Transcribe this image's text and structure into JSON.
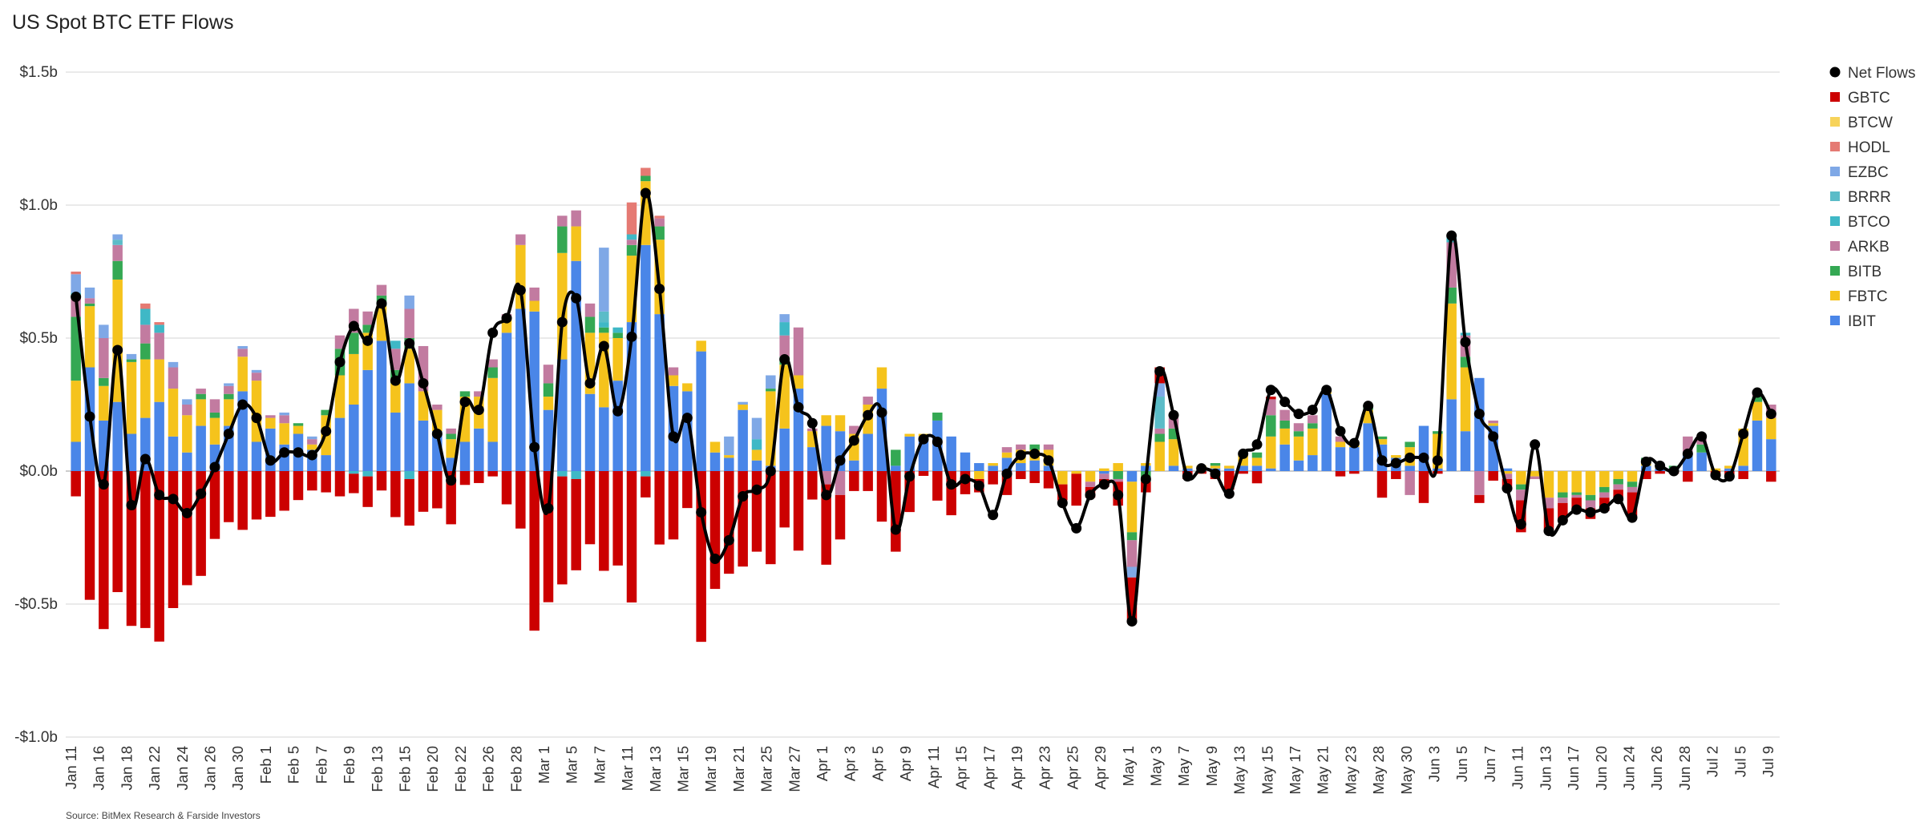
{
  "chart_data": {
    "type": "bar",
    "title": "US Spot BTC ETF Flows",
    "source": "Source: BitMex Research & Farside Investors",
    "ylim": [
      -1.0,
      1.5
    ],
    "y_unit": "billion USD",
    "yticks": [
      {
        "value": 1.5,
        "label": "$1.5b"
      },
      {
        "value": 1.0,
        "label": "$1.0b"
      },
      {
        "value": 0.5,
        "label": "$0.5b"
      },
      {
        "value": 0.0,
        "label": "$0.0b"
      },
      {
        "value": -0.5,
        "label": "-$0.5b"
      },
      {
        "value": -1.0,
        "label": "-$1.0b"
      }
    ],
    "xtick_labels": [
      "Jan 11",
      "Jan 16",
      "Jan 18",
      "Jan 22",
      "Jan 24",
      "Jan 26",
      "Jan 30",
      "Feb 1",
      "Feb 5",
      "Feb 7",
      "Feb 9",
      "Feb 13",
      "Feb 15",
      "Feb 20",
      "Feb 22",
      "Feb 26",
      "Feb 28",
      "Mar 1",
      "Mar 5",
      "Mar 7",
      "Mar 11",
      "Mar 13",
      "Mar 15",
      "Mar 19",
      "Mar 21",
      "Mar 25",
      "Mar 27",
      "Apr 1",
      "Apr 3",
      "Apr 5",
      "Apr 9",
      "Apr 11",
      "Apr 15",
      "Apr 17",
      "Apr 19",
      "Apr 23",
      "Apr 25",
      "Apr 29",
      "May 1",
      "May 3",
      "May 7",
      "May 9",
      "May 13",
      "May 15",
      "May 17",
      "May 21",
      "May 23",
      "May 28",
      "May 30",
      "Jun 3",
      "Jun 5",
      "Jun 7",
      "Jun 11",
      "Jun 13",
      "Jun 17",
      "Jun 20",
      "Jun 24",
      "Jun 26",
      "Jun 28",
      "Jul 2",
      "Jul 5",
      "Jul 9"
    ],
    "legend_position": "right",
    "grid": true,
    "series_order": [
      "IBIT",
      "FBTC",
      "BITB",
      "ARKB",
      "BTCO",
      "BRRR",
      "EZBC",
      "HODL",
      "BTCW",
      "GBTC"
    ],
    "net_flows_name": "Net Flows",
    "series_colors": {
      "IBIT": "#4a86e8",
      "FBTC": "#f5c31c",
      "BITB": "#34a853",
      "ARKB": "#c27ba0",
      "BTCO": "#3fb8c6",
      "BRRR": "#5bbcc8",
      "EZBC": "#7fa8e6",
      "HODL": "#e57a73",
      "BTCW": "#f7d35a",
      "GBTC": "#cc0000",
      "Net Flows": "#000000"
    },
    "legend": [
      "Net Flows",
      "GBTC",
      "BTCW",
      "HODL",
      "EZBC",
      "BRRR",
      "BTCO",
      "ARKB",
      "BITB",
      "FBTC",
      "IBIT"
    ],
    "days": [
      {
        "IBIT": 0.11,
        "FBTC": 0.23,
        "BITB": 0.24,
        "ARKB": 0.07,
        "BTCO": 0.02,
        "EZBC": 0.07,
        "HODL": 0.01,
        "GBTC": -0.095,
        "net": 0.655
      },
      {
        "IBIT": 0.39,
        "FBTC": 0.23,
        "BITB": 0.01,
        "ARKB": 0.02,
        "EZBC": 0.04,
        "GBTC": -0.484,
        "net": 0.205
      },
      {
        "IBIT": 0.19,
        "FBTC": 0.13,
        "BITB": 0.03,
        "ARKB": 0.15,
        "EZBC": 0.05,
        "GBTC": -0.594,
        "net": -0.05
      },
      {
        "IBIT": 0.26,
        "FBTC": 0.46,
        "BITB": 0.07,
        "ARKB": 0.06,
        "BRRR": 0.02,
        "EZBC": 0.02,
        "GBTC": -0.455,
        "net": 0.455
      },
      {
        "IBIT": 0.14,
        "FBTC": 0.27,
        "BITB": 0.01,
        "EZBC": 0.02,
        "GBTC": -0.582,
        "net": -0.128
      },
      {
        "IBIT": 0.2,
        "FBTC": 0.22,
        "BITB": 0.06,
        "ARKB": 0.07,
        "BTCO": 0.06,
        "HODL": 0.02,
        "GBTC": -0.59,
        "net": 0.045
      },
      {
        "IBIT": 0.26,
        "FBTC": 0.16,
        "ARKB": 0.1,
        "BTCO": 0.03,
        "HODL": 0.01,
        "GBTC": -0.641,
        "net": -0.09
      },
      {
        "IBIT": 0.13,
        "FBTC": 0.18,
        "ARKB": 0.08,
        "EZBC": 0.02,
        "GBTC": -0.515,
        "net": -0.105
      },
      {
        "IBIT": 0.07,
        "FBTC": 0.14,
        "ARKB": 0.04,
        "EZBC": 0.02,
        "GBTC": -0.429,
        "net": -0.158
      },
      {
        "IBIT": 0.17,
        "FBTC": 0.1,
        "BITB": 0.02,
        "ARKB": 0.02,
        "GBTC": -0.394,
        "net": -0.085
      },
      {
        "IBIT": 0.1,
        "FBTC": 0.1,
        "BITB": 0.02,
        "ARKB": 0.05,
        "GBTC": -0.255,
        "net": 0.015
      },
      {
        "IBIT": 0.17,
        "FBTC": 0.1,
        "BITB": 0.02,
        "ARKB": 0.03,
        "EZBC": 0.01,
        "GBTC": -0.192,
        "net": 0.14
      },
      {
        "IBIT": 0.3,
        "FBTC": 0.13,
        "ARKB": 0.03,
        "EZBC": 0.01,
        "GBTC": -0.221,
        "net": 0.25
      },
      {
        "IBIT": 0.11,
        "FBTC": 0.23,
        "ARKB": 0.03,
        "EZBC": 0.01,
        "GBTC": -0.182,
        "net": 0.2
      },
      {
        "IBIT": 0.16,
        "FBTC": 0.04,
        "ARKB": 0.01,
        "GBTC": -0.172,
        "net": 0.04
      },
      {
        "IBIT": 0.1,
        "FBTC": 0.08,
        "ARKB": 0.03,
        "EZBC": 0.01,
        "GBTC": -0.149,
        "net": 0.07
      },
      {
        "IBIT": 0.14,
        "FBTC": 0.03,
        "BITB": 0.01,
        "GBTC": -0.109,
        "net": 0.07
      },
      {
        "IBIT": 0.08,
        "FBTC": 0.02,
        "ARKB": 0.02,
        "EZBC": 0.01,
        "GBTC": -0.073,
        "net": 0.06
      },
      {
        "IBIT": 0.06,
        "FBTC": 0.15,
        "BITB": 0.02,
        "GBTC": -0.08,
        "net": 0.15
      },
      {
        "IBIT": 0.2,
        "FBTC": 0.16,
        "BITB": 0.1,
        "ARKB": 0.05,
        "GBTC": -0.095,
        "net": 0.41
      },
      {
        "IBIT": 0.25,
        "FBTC": 0.19,
        "BITB": 0.08,
        "ARKB": 0.09,
        "BTCO": -0.01,
        "GBTC": -0.073,
        "net": 0.545
      },
      {
        "IBIT": 0.38,
        "FBTC": 0.14,
        "BITB": 0.03,
        "ARKB": 0.05,
        "BTCO": -0.02,
        "GBTC": -0.115,
        "net": 0.49
      },
      {
        "IBIT": 0.49,
        "FBTC": 0.13,
        "BITB": 0.04,
        "ARKB": 0.04,
        "GBTC": -0.073,
        "net": 0.63
      },
      {
        "IBIT": 0.22,
        "FBTC": 0.11,
        "BITB": 0.05,
        "ARKB": 0.08,
        "BTCO": 0.03,
        "GBTC": -0.173,
        "net": 0.34
      },
      {
        "IBIT": 0.33,
        "FBTC": 0.13,
        "BITB": 0.04,
        "ARKB": 0.11,
        "EZBC": 0.05,
        "BTCO": -0.03,
        "GBTC": -0.175,
        "net": 0.48
      },
      {
        "IBIT": 0.19,
        "FBTC": 0.11,
        "ARKB": 0.17,
        "GBTC": -0.153,
        "net": 0.33
      },
      {
        "IBIT": 0.15,
        "FBTC": 0.08,
        "ARKB": 0.02,
        "GBTC": -0.14,
        "net": 0.14
      },
      {
        "IBIT": 0.05,
        "FBTC": 0.07,
        "BITB": 0.02,
        "ARKB": 0.02,
        "GBTC": -0.2,
        "net": -0.035
      },
      {
        "IBIT": 0.11,
        "FBTC": 0.17,
        "BITB": 0.02,
        "GBTC": -0.052,
        "net": 0.26
      },
      {
        "IBIT": 0.16,
        "FBTC": 0.12,
        "ARKB": 0.02,
        "GBTC": -0.045,
        "net": 0.23
      },
      {
        "IBIT": 0.11,
        "FBTC": 0.24,
        "BITB": 0.04,
        "ARKB": 0.03,
        "GBTC": -0.02,
        "net": 0.52
      },
      {
        "IBIT": 0.52,
        "FBTC": 0.05,
        "ARKB": 0.02,
        "GBTC": -0.125,
        "net": 0.575
      },
      {
        "IBIT": 0.61,
        "FBTC": 0.24,
        "ARKB": 0.04,
        "GBTC": -0.216,
        "net": 0.68
      },
      {
        "IBIT": 0.6,
        "FBTC": 0.04,
        "ARKB": 0.05,
        "GBTC": -0.6,
        "net": 0.09
      },
      {
        "IBIT": 0.23,
        "FBTC": 0.05,
        "BITB": 0.05,
        "ARKB": 0.07,
        "GBTC": -0.493,
        "net": -0.14
      },
      {
        "IBIT": 0.42,
        "FBTC": 0.4,
        "BITB": 0.1,
        "ARKB": 0.04,
        "BTCO": -0.02,
        "GBTC": -0.406,
        "net": 0.56
      },
      {
        "IBIT": 0.79,
        "FBTC": 0.13,
        "ARKB": 0.06,
        "BTCO": -0.03,
        "GBTC": -0.343,
        "net": 0.65
      },
      {
        "IBIT": 0.29,
        "FBTC": 0.23,
        "BITB": 0.06,
        "ARKB": 0.05,
        "GBTC": -0.275,
        "net": 0.33
      },
      {
        "IBIT": 0.24,
        "FBTC": 0.28,
        "BITB": 0.02,
        "BTCO": 0.02,
        "BRRR": 0.04,
        "EZBC": 0.24,
        "GBTC": -0.375,
        "net": 0.47
      },
      {
        "IBIT": 0.34,
        "FBTC": 0.16,
        "BITB": 0.02,
        "BTCO": 0.02,
        "GBTC": -0.355,
        "net": 0.225
      },
      {
        "IBIT": 0.56,
        "FBTC": 0.25,
        "BITB": 0.04,
        "ARKB": 0.02,
        "BTCO": 0.02,
        "HODL": 0.12,
        "GBTC": -0.494,
        "net": 0.505
      },
      {
        "IBIT": 0.85,
        "FBTC": 0.24,
        "BITB": 0.02,
        "HODL": 0.03,
        "BTCO": -0.02,
        "GBTC": -0.079,
        "net": 1.045
      },
      {
        "IBIT": 0.59,
        "FBTC": 0.28,
        "BITB": 0.05,
        "ARKB": 0.03,
        "HODL": 0.01,
        "GBTC": -0.276,
        "net": 0.685
      },
      {
        "IBIT": 0.32,
        "FBTC": 0.04,
        "ARKB": 0.03,
        "GBTC": -0.257,
        "net": 0.13
      },
      {
        "IBIT": 0.3,
        "FBTC": 0.03,
        "GBTC": -0.139,
        "net": 0.2
      },
      {
        "IBIT": 0.45,
        "FBTC": 0.04,
        "GBTC": -0.642,
        "net": -0.155
      },
      {
        "IBIT": 0.07,
        "FBTC": 0.04,
        "GBTC": -0.443,
        "net": -0.33
      },
      {
        "IBIT": 0.05,
        "FBTC": 0.01,
        "EZBC": 0.07,
        "GBTC": -0.386,
        "net": -0.26
      },
      {
        "IBIT": 0.23,
        "FBTC": 0.02,
        "EZBC": 0.01,
        "GBTC": -0.359,
        "net": -0.095
      },
      {
        "IBIT": 0.04,
        "FBTC": 0.04,
        "BTCO": 0.04,
        "EZBC": 0.08,
        "GBTC": -0.303,
        "net": -0.07
      },
      {
        "IBIT": 0.02,
        "FBTC": 0.28,
        "BITB": 0.01,
        "EZBC": 0.05,
        "GBTC": -0.35,
        "net": 0.0
      },
      {
        "IBIT": 0.16,
        "FBTC": 0.24,
        "BITB": 0.03,
        "ARKB": 0.08,
        "BTCO": 0.05,
        "EZBC": 0.03,
        "GBTC": -0.212,
        "net": 0.42
      },
      {
        "IBIT": 0.31,
        "FBTC": 0.05,
        "ARKB": 0.18,
        "GBTC": -0.299,
        "net": 0.24
      },
      {
        "IBIT": 0.09,
        "FBTC": 0.06,
        "ARKB": 0.01,
        "GBTC": -0.107,
        "net": 0.18
      },
      {
        "IBIT": 0.17,
        "FBTC": 0.04,
        "ARKB": -0.05,
        "GBTC": -0.302,
        "net": -0.09
      },
      {
        "IBIT": 0.15,
        "FBTC": 0.06,
        "ARKB": -0.09,
        "GBTC": -0.167,
        "net": 0.04
      },
      {
        "IBIT": 0.04,
        "FBTC": 0.1,
        "ARKB": 0.03,
        "GBTC": -0.075,
        "net": 0.115
      },
      {
        "IBIT": 0.14,
        "FBTC": 0.11,
        "ARKB": 0.03,
        "GBTC": -0.075,
        "net": 0.21
      },
      {
        "IBIT": 0.31,
        "FBTC": 0.08,
        "GBTC": -0.19,
        "net": 0.22
      },
      {
        "IBIT": 0.02,
        "BITB": 0.06,
        "GBTC": -0.303,
        "net": -0.22
      },
      {
        "IBIT": 0.13,
        "FBTC": 0.01,
        "GBTC": -0.154,
        "net": -0.02
      },
      {
        "IBIT": 0.13,
        "FBTC": 0.01,
        "GBTC": -0.018,
        "net": 0.12
      },
      {
        "IBIT": 0.19,
        "BITB": 0.03,
        "GBTC": -0.111,
        "net": 0.11
      },
      {
        "IBIT": 0.13,
        "GBTC": -0.166,
        "net": -0.05
      },
      {
        "IBIT": 0.07,
        "GBTC": -0.087,
        "net": -0.03
      },
      {
        "IBIT": 0.03,
        "FBTC": -0.03,
        "GBTC": -0.05,
        "net": -0.055
      },
      {
        "IBIT": 0.02,
        "FBTC": 0.01,
        "GBTC": -0.05,
        "net": -0.165
      },
      {
        "IBIT": 0.05,
        "FBTC": 0.02,
        "ARKB": 0.02,
        "GBTC": -0.09,
        "net": -0.01
      },
      {
        "IBIT": 0.03,
        "FBTC": 0.05,
        "ARKB": 0.02,
        "GBTC": -0.03,
        "net": 0.06
      },
      {
        "IBIT": 0.04,
        "FBTC": 0.04,
        "BITB": 0.02,
        "GBTC": -0.045,
        "net": 0.065
      },
      {
        "IBIT": 0.02,
        "FBTC": 0.06,
        "ARKB": 0.02,
        "GBTC": -0.065,
        "net": 0.04
      },
      {
        "FBTC": -0.05,
        "GBTC": -0.06,
        "net": -0.12
      },
      {
        "FBTC": -0.01,
        "GBTC": -0.12,
        "net": -0.215
      },
      {
        "FBTC": -0.04,
        "ARKB": -0.02,
        "GBTC": -0.04,
        "net": -0.09
      },
      {
        "IBIT": -0.01,
        "FBTC": 0.01,
        "ARKB": -0.02,
        "GBTC": -0.03,
        "net": -0.05
      },
      {
        "FBTC": 0.03,
        "BITB": -0.03,
        "ARKB": -0.01,
        "GBTC": -0.09,
        "net": -0.09
      },
      {
        "IBIT": -0.04,
        "FBTC": -0.19,
        "BITB": -0.03,
        "ARKB": -0.1,
        "EZBC": -0.04,
        "GBTC": -0.17,
        "net": -0.565
      },
      {
        "IBIT": 0.02,
        "FBTC": 0.01,
        "BITB": -0.04,
        "GBTC": -0.04,
        "net": -0.03
      },
      {
        "FBTC": 0.11,
        "BITB": 0.03,
        "ARKB": 0.02,
        "BRRR": 0.12,
        "EZBC": 0.05,
        "GBTC": 0.06,
        "net": 0.375
      },
      {
        "IBIT": 0.02,
        "FBTC": 0.1,
        "BITB": 0.04,
        "ARKB": 0.04,
        "GBTC": 0.0,
        "net": 0.21
      },
      {
        "IBIT": 0.01,
        "FBTC": 0.01,
        "GBTC": -0.03,
        "net": -0.02
      },
      {
        "IBIT": 0.01,
        "FBTC": 0.01,
        "GBTC": -0.01,
        "net": 0.01
      },
      {
        "IBIT": 0.01,
        "FBTC": 0.01,
        "BITB": 0.01,
        "GBTC": -0.03,
        "net": -0.01
      },
      {
        "IBIT": 0.01,
        "FBTC": 0.01,
        "GBTC": -0.07,
        "net": -0.085
      },
      {
        "IBIT": 0.02,
        "FBTC": 0.04,
        "GBTC": -0.01,
        "net": 0.065
      },
      {
        "IBIT": 0.02,
        "FBTC": 0.03,
        "BITB": 0.02,
        "GBTC": -0.046,
        "net": 0.1
      },
      {
        "IBIT": 0.01,
        "FBTC": 0.12,
        "BITB": 0.08,
        "ARKB": 0.06,
        "GBTC": 0.01,
        "net": 0.305
      },
      {
        "IBIT": 0.1,
        "FBTC": 0.06,
        "BITB": 0.03,
        "ARKB": 0.04,
        "GBTC": 0.0,
        "net": 0.26
      },
      {
        "IBIT": 0.04,
        "FBTC": 0.09,
        "BITB": 0.02,
        "ARKB": 0.03,
        "GBTC": 0.0,
        "net": 0.215
      },
      {
        "IBIT": 0.06,
        "FBTC": 0.1,
        "BITB": 0.02,
        "ARKB": 0.03,
        "GBTC": 0.0,
        "net": 0.23
      },
      {
        "IBIT": 0.29,
        "FBTC": 0.01,
        "GBTC": 0.0,
        "net": 0.305
      },
      {
        "IBIT": 0.09,
        "FBTC": 0.02,
        "ARKB": 0.02,
        "GBTC": -0.02,
        "net": 0.15
      },
      {
        "IBIT": 0.09,
        "FBTC": 0.01,
        "ARKB": 0.01,
        "GBTC": -0.01,
        "net": 0.105
      },
      {
        "IBIT": 0.18,
        "FBTC": 0.05,
        "BITB": 0.01,
        "GBTC": 0.0,
        "net": 0.245
      },
      {
        "IBIT": 0.1,
        "FBTC": 0.02,
        "BITB": 0.01,
        "GBTC": -0.1,
        "net": 0.04
      },
      {
        "IBIT": 0.05,
        "FBTC": 0.01,
        "GBTC": -0.03,
        "net": 0.03
      },
      {
        "IBIT": 0.02,
        "FBTC": 0.07,
        "BITB": 0.02,
        "ARKB": -0.09,
        "GBTC": 0.0,
        "net": 0.05
      },
      {
        "IBIT": 0.17,
        "GBTC": -0.12,
        "net": 0.05
      },
      {
        "IBIT": 0.01,
        "FBTC": 0.13,
        "BITB": 0.01,
        "GBTC": -0.01,
        "net": 0.04
      },
      {
        "IBIT": 0.27,
        "FBTC": 0.36,
        "BITB": 0.06,
        "ARKB": 0.17,
        "BTCO": 0.02,
        "GBTC": 0.0,
        "net": 0.885
      },
      {
        "IBIT": 0.15,
        "FBTC": 0.24,
        "BITB": 0.04,
        "ARKB": 0.08,
        "BTCO": 0.01,
        "GBTC": 0.0,
        "net": 0.485
      },
      {
        "IBIT": 0.35,
        "ARKB": -0.09,
        "GBTC": -0.03,
        "net": 0.215
      },
      {
        "IBIT": 0.17,
        "FBTC": 0.01,
        "ARKB": 0.01,
        "GBTC": -0.036,
        "net": 0.13
      },
      {
        "IBIT": 0.01,
        "FBTC": -0.01,
        "ARKB": -0.02,
        "GBTC": -0.04,
        "net": -0.065
      },
      {
        "FBTC": -0.05,
        "BITB": -0.02,
        "ARKB": -0.04,
        "GBTC": -0.12,
        "net": -0.2
      },
      {
        "IBIT": 0.0,
        "FBTC": -0.02,
        "ARKB": -0.01,
        "GBTC": 0.0,
        "net": 0.1
      },
      {
        "FBTC": -0.1,
        "ARKB": -0.04,
        "GBTC": -0.09,
        "net": -0.225
      },
      {
        "FBTC": -0.08,
        "BITB": -0.02,
        "ARKB": -0.02,
        "GBTC": -0.07,
        "net": -0.185
      },
      {
        "FBTC": -0.08,
        "BITB": -0.01,
        "ARKB": -0.01,
        "GBTC": -0.05,
        "net": -0.145
      },
      {
        "FBTC": -0.09,
        "BITB": -0.02,
        "ARKB": -0.03,
        "GBTC": -0.04,
        "net": -0.155
      },
      {
        "FBTC": -0.06,
        "BITB": -0.02,
        "ARKB": -0.02,
        "GBTC": -0.05,
        "net": -0.14
      },
      {
        "FBTC": -0.03,
        "BITB": -0.02,
        "ARKB": -0.02,
        "GBTC": -0.04,
        "net": -0.105
      },
      {
        "IBIT": 0.0,
        "FBTC": -0.04,
        "BITB": -0.02,
        "ARKB": -0.02,
        "GBTC": -0.09,
        "net": -0.175
      },
      {
        "IBIT": 0.02,
        "FBTC": 0.01,
        "BITB": 0.02,
        "GBTC": -0.03,
        "net": 0.035
      },
      {
        "IBIT": 0.01,
        "FBTC": 0.01,
        "GBTC": -0.01,
        "net": 0.02
      },
      {
        "IBIT": 0.01,
        "BITB": 0.01,
        "GBTC": -0.01,
        "net": 0.0
      },
      {
        "IBIT": 0.07,
        "ARKB": 0.06,
        "GBTC": -0.04,
        "net": 0.065
      },
      {
        "IBIT": 0.07,
        "BITB": 0.03,
        "ARKB": 0.02,
        "GBTC": 0.0,
        "net": 0.13
      },
      {
        "IBIT": 0.0,
        "FBTC": 0.01,
        "GBTC": -0.02,
        "net": -0.015
      },
      {
        "IBIT": 0.01,
        "FBTC": 0.01,
        "GBTC": -0.02,
        "net": -0.02
      },
      {
        "IBIT": 0.02,
        "FBTC": 0.14,
        "GBTC": -0.03,
        "net": 0.14
      },
      {
        "IBIT": 0.19,
        "FBTC": 0.07,
        "BITB": 0.02,
        "ARKB": 0.02,
        "GBTC": 0.0,
        "net": 0.295
      },
      {
        "IBIT": 0.12,
        "FBTC": 0.08,
        "ARKB": 0.05,
        "GBTC": -0.04,
        "net": 0.215
      }
    ]
  }
}
